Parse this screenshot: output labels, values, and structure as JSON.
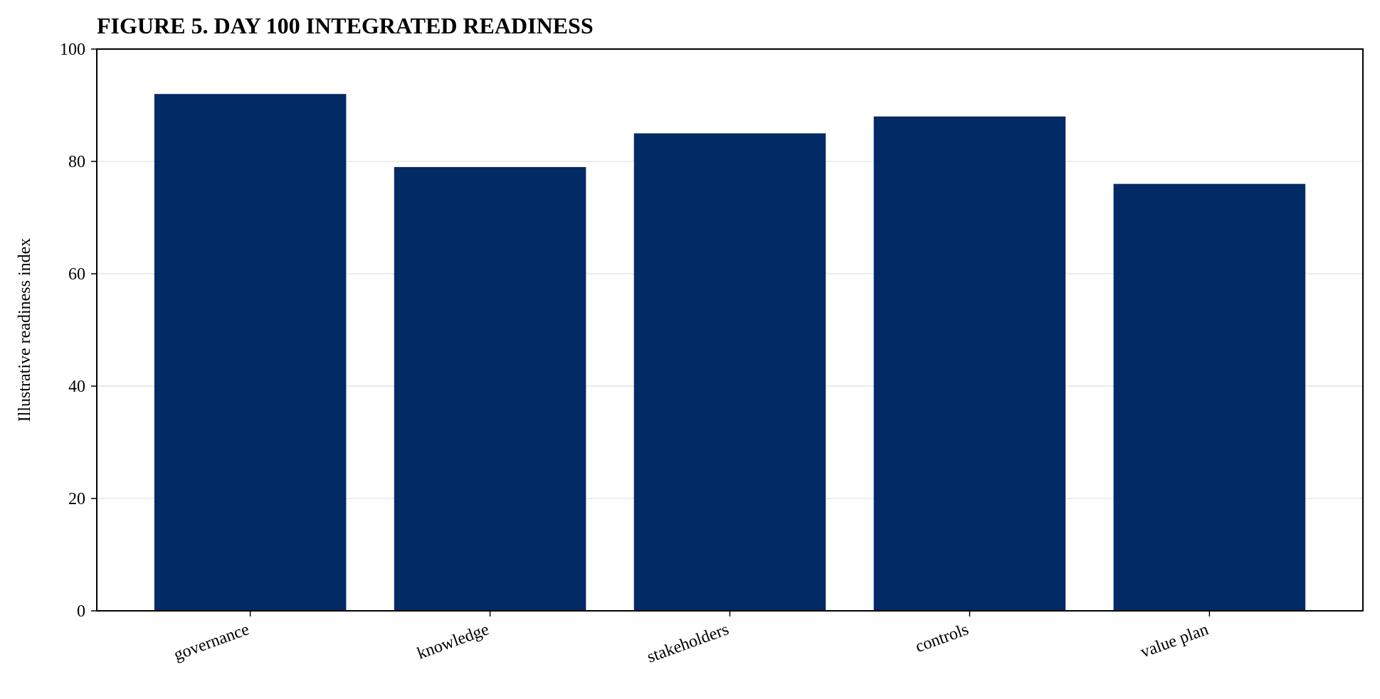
{
  "chart_data": {
    "type": "bar",
    "title": "FIGURE 5. DAY 100 INTEGRATED READINESS",
    "y_label": "Illustrative readiness index",
    "categories": [
      "governance",
      "knowledge",
      "stakeholders",
      "controls",
      "value plan"
    ],
    "values": [
      92,
      79,
      85,
      88,
      76
    ],
    "color": "#022a64",
    "ylim": [
      0,
      100
    ],
    "yticks": [
      0,
      20,
      40,
      60,
      80,
      100
    ],
    "grid": true
  }
}
